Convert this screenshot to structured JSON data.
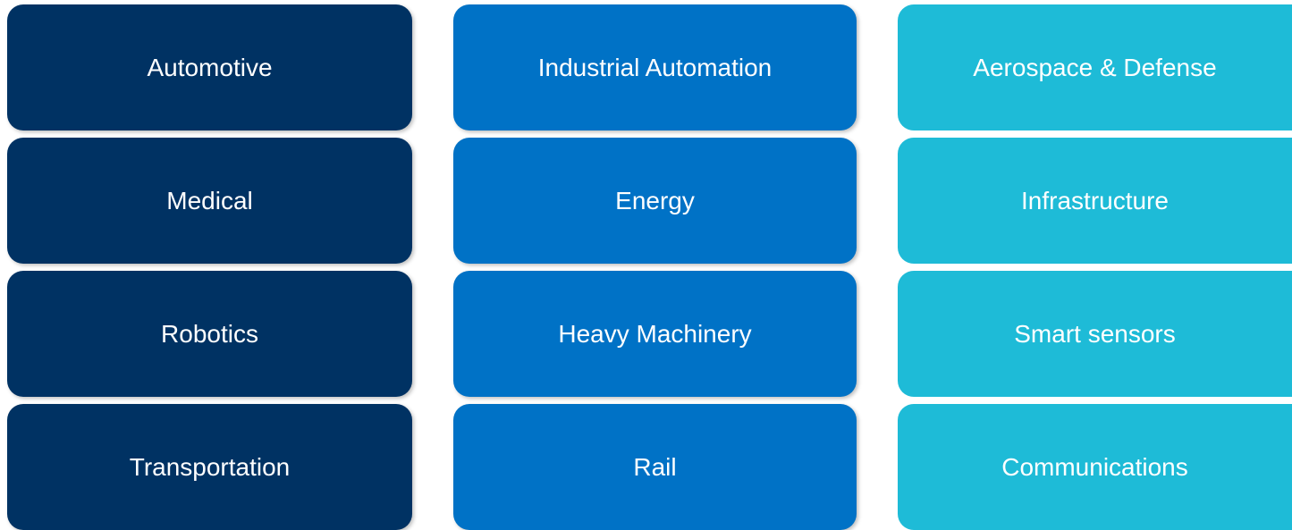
{
  "columns": [
    {
      "color": "#003263",
      "items": [
        "Automotive",
        "Medical",
        "Robotics",
        "Transportation"
      ]
    },
    {
      "color": "#0072c6",
      "items": [
        "Industrial Automation",
        "Energy",
        "Heavy Machinery",
        "Rail"
      ]
    },
    {
      "color": "#1ebbd7",
      "items": [
        "Aerospace & Defense",
        "Infrastructure",
        "Smart sensors",
        "Communications"
      ]
    }
  ]
}
